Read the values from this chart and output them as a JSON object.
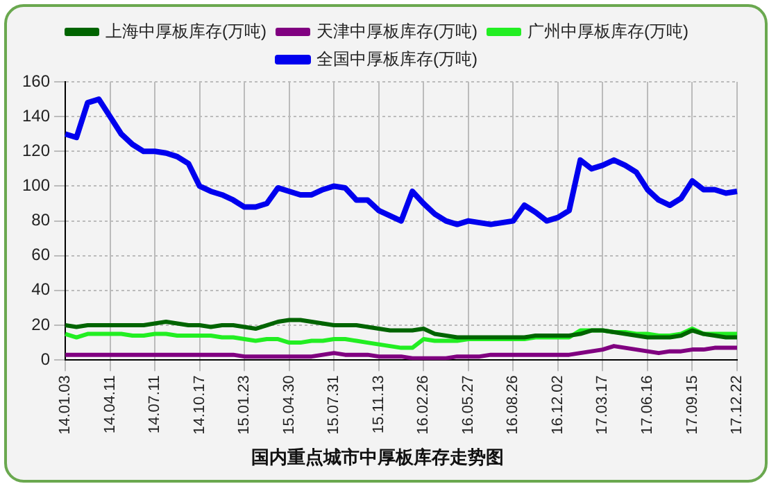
{
  "chart_data": {
    "type": "line",
    "title": "国内重点城市中厚板库存走势图",
    "categories": [
      "14.01.03",
      null,
      null,
      null,
      "14.04.11",
      null,
      null,
      null,
      "14.07.11",
      null,
      null,
      null,
      "14.10.17",
      null,
      null,
      null,
      "15.01.23",
      null,
      null,
      null,
      "15.04.30",
      null,
      null,
      null,
      "15.07.31",
      null,
      null,
      null,
      "15.11.13",
      null,
      null,
      null,
      "16.02.26",
      null,
      null,
      null,
      "16.05.27",
      null,
      null,
      null,
      "16.08.26",
      null,
      null,
      null,
      "16.12.02",
      null,
      null,
      null,
      "17.03.17",
      null,
      null,
      null,
      "17.06.16",
      null,
      null,
      null,
      "17.09.15",
      null,
      null,
      null,
      "17.12.22"
    ],
    "series": [
      {
        "name": "上海中厚板库存(万吨)",
        "color": "#006400",
        "values": [
          20,
          19,
          20,
          20,
          20,
          20,
          20,
          20,
          21,
          22,
          21,
          20,
          20,
          19,
          20,
          20,
          19,
          18,
          20,
          22,
          23,
          23,
          22,
          21,
          20,
          20,
          20,
          19,
          18,
          17,
          17,
          17,
          18,
          15,
          14,
          13,
          13,
          13,
          13,
          13,
          13,
          13,
          14,
          14,
          14,
          14,
          15,
          17,
          17,
          16,
          15,
          14,
          13,
          13,
          13,
          14,
          17,
          15,
          14,
          13,
          13
        ]
      },
      {
        "name": "天津中厚板库存(万吨)",
        "color": "#800080",
        "values": [
          3,
          3,
          3,
          3,
          3,
          3,
          3,
          3,
          3,
          3,
          3,
          3,
          3,
          3,
          3,
          3,
          2,
          2,
          2,
          2,
          2,
          2,
          2,
          3,
          4,
          3,
          3,
          3,
          2,
          2,
          2,
          1,
          1,
          1,
          1,
          2,
          2,
          2,
          3,
          3,
          3,
          3,
          3,
          3,
          3,
          3,
          4,
          5,
          6,
          8,
          7,
          6,
          5,
          4,
          5,
          5,
          6,
          6,
          7,
          7,
          7
        ]
      },
      {
        "name": "广州中厚板库存(万吨)",
        "color": "#22ee22",
        "values": [
          15,
          13,
          15,
          15,
          15,
          15,
          14,
          14,
          15,
          15,
          14,
          14,
          14,
          14,
          13,
          13,
          12,
          11,
          12,
          12,
          10,
          10,
          11,
          11,
          12,
          12,
          11,
          10,
          9,
          8,
          7,
          7,
          12,
          11,
          11,
          11,
          12,
          12,
          12,
          12,
          12,
          12,
          13,
          13,
          13,
          13,
          17,
          17,
          17,
          16,
          16,
          15,
          15,
          14,
          14,
          15,
          18,
          15,
          15,
          15,
          15
        ]
      },
      {
        "name": "全国中厚板库存(万吨)",
        "color": "#0000ee",
        "values": [
          130,
          128,
          148,
          150,
          140,
          130,
          124,
          120,
          120,
          119,
          117,
          113,
          100,
          97,
          95,
          92,
          88,
          88,
          90,
          99,
          97,
          95,
          95,
          98,
          100,
          99,
          92,
          92,
          86,
          83,
          80,
          97,
          90,
          84,
          80,
          78,
          80,
          79,
          78,
          79,
          80,
          89,
          85,
          80,
          82,
          86,
          115,
          110,
          112,
          115,
          112,
          108,
          98,
          92,
          89,
          93,
          103,
          98,
          98,
          96,
          97
        ]
      }
    ],
    "ylim": [
      0,
      160
    ],
    "yticks": [
      0,
      20,
      40,
      60,
      80,
      100,
      120,
      140,
      160
    ],
    "grid": true,
    "legend": "top",
    "marker": "none",
    "line_style": "solid"
  }
}
